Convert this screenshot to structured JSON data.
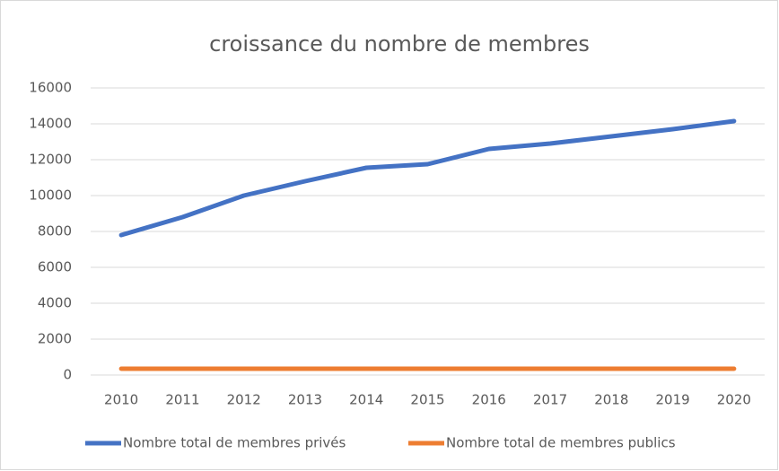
{
  "chart_data": {
    "type": "line",
    "title": "croissance du nombre de membres",
    "categories": [
      "2010",
      "2011",
      "2012",
      "2013",
      "2014",
      "2015",
      "2016",
      "2017",
      "2018",
      "2019",
      "2020"
    ],
    "series": [
      {
        "name": "Nombre total de membres privés",
        "color": "#4472c4",
        "values": [
          7800,
          8800,
          10000,
          10800,
          11550,
          11750,
          12600,
          12900,
          13300,
          13700,
          14150
        ]
      },
      {
        "name": "Nombre total de membres publics",
        "color": "#ed7d31",
        "values": [
          350,
          350,
          350,
          350,
          350,
          350,
          350,
          350,
          350,
          350,
          350
        ]
      }
    ],
    "ylim": [
      0,
      16000
    ],
    "yticks": [
      0,
      2000,
      4000,
      6000,
      8000,
      10000,
      12000,
      14000,
      16000
    ],
    "grid": true
  }
}
